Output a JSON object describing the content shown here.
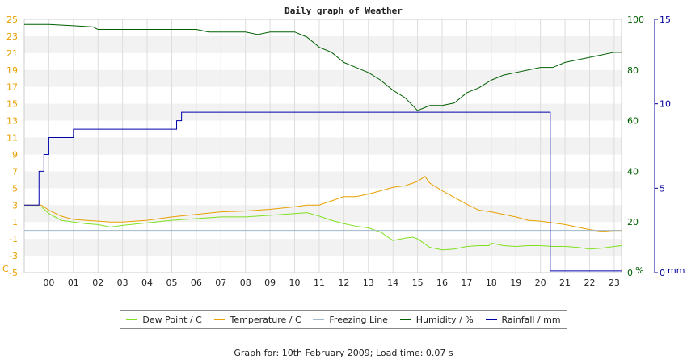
{
  "chart_data": {
    "type": "line",
    "title": "Daily graph of Weather",
    "x_ticks": [
      "00",
      "01",
      "02",
      "03",
      "04",
      "05",
      "06",
      "07",
      "08",
      "09",
      "10",
      "11",
      "12",
      "13",
      "14",
      "15",
      "16",
      "17",
      "18",
      "19",
      "20",
      "21",
      "22",
      "23"
    ],
    "xlim": [
      -1,
      23.3
    ],
    "left_axis": {
      "unit": "C",
      "min": -5,
      "max": 25,
      "ticks": [
        25,
        23,
        21,
        19,
        17,
        15,
        13,
        11,
        9,
        7,
        5,
        3,
        1,
        -1,
        -3,
        -5
      ],
      "color": "#e8a000"
    },
    "humidity_axis": {
      "unit": "%",
      "min": 0,
      "max": 100,
      "ticks": [
        100,
        80,
        60,
        40,
        20,
        0
      ],
      "color": "#006000"
    },
    "rainfall_axis": {
      "unit": "mm",
      "min": 0,
      "max": 15,
      "ticks": [
        15,
        10,
        5,
        0
      ],
      "color": "#000099"
    },
    "series": [
      {
        "name": "Dew Point / C",
        "color": "#80e020",
        "axis": "left",
        "x": [
          -1,
          -0.3,
          0,
          0.5,
          1,
          1.5,
          2,
          2.5,
          3,
          4,
          5,
          6,
          7,
          8,
          9,
          10,
          10.5,
          11,
          11.5,
          12,
          12.5,
          13,
          13.5,
          14,
          14.5,
          14.8,
          15,
          15.5,
          16,
          16.5,
          17,
          17.5,
          17.9,
          18,
          18.5,
          19,
          19.5,
          20,
          20.5,
          21,
          21.5,
          22,
          22.5,
          23,
          23.3
        ],
        "y": [
          2.8,
          2.8,
          2.0,
          1.2,
          1.0,
          0.8,
          0.7,
          0.4,
          0.6,
          0.9,
          1.2,
          1.4,
          1.6,
          1.6,
          1.8,
          2.0,
          2.1,
          1.7,
          1.2,
          0.8,
          0.5,
          0.3,
          -0.2,
          -1.2,
          -0.9,
          -0.8,
          -1.0,
          -2.0,
          -2.3,
          -2.2,
          -1.9,
          -1.8,
          -1.8,
          -1.5,
          -1.8,
          -1.9,
          -1.8,
          -1.8,
          -1.9,
          -1.9,
          -2.0,
          -2.2,
          -2.1,
          -1.9,
          -1.8
        ]
      },
      {
        "name": "Temperature / C",
        "color": "#e8a000",
        "axis": "left",
        "x": [
          -1,
          -0.3,
          0,
          0.5,
          1,
          1.5,
          2,
          2.5,
          3,
          4,
          5,
          6,
          7,
          8,
          9,
          10,
          10.5,
          11,
          11.5,
          12,
          12.5,
          13,
          13.5,
          14,
          14.5,
          15,
          15.3,
          15.5,
          16,
          16.5,
          17,
          17.5,
          18,
          18.5,
          19,
          19.5,
          20,
          20.5,
          21,
          21.5,
          22,
          22.5,
          23,
          23.3
        ],
        "y": [
          3.0,
          3.0,
          2.4,
          1.7,
          1.3,
          1.2,
          1.1,
          1.0,
          1.0,
          1.2,
          1.6,
          1.9,
          2.2,
          2.3,
          2.5,
          2.8,
          3.0,
          3.0,
          3.5,
          4.0,
          4.0,
          4.3,
          4.7,
          5.1,
          5.3,
          5.8,
          6.4,
          5.6,
          4.7,
          3.9,
          3.1,
          2.4,
          2.2,
          1.9,
          1.6,
          1.2,
          1.1,
          0.9,
          0.7,
          0.4,
          0.1,
          -0.1,
          0.0,
          0.0
        ]
      },
      {
        "name": "Freezing Line",
        "color": "#a0b8c8",
        "axis": "left",
        "x": [
          -1,
          23.3
        ],
        "y": [
          0,
          0
        ]
      },
      {
        "name": "Humidity / %",
        "color": "#006000",
        "axis": "humidity",
        "x": [
          -1,
          0,
          1,
          1.8,
          2,
          3,
          4,
          5,
          6,
          6.5,
          7,
          8,
          8.5,
          9,
          10,
          10.5,
          11,
          11.5,
          12,
          12.5,
          13,
          13.5,
          14,
          14.5,
          15,
          15.5,
          16,
          16.5,
          17,
          17.5,
          18,
          18.5,
          19,
          19.5,
          20,
          20.5,
          21,
          21.5,
          22,
          22.5,
          23,
          23.3
        ],
        "y": [
          98,
          98,
          97.5,
          97,
          96,
          96,
          96,
          96,
          96,
          95,
          95,
          95,
          94,
          95,
          95,
          93,
          89,
          87,
          83,
          81,
          79,
          76,
          72,
          69,
          64,
          66,
          66,
          67,
          71,
          73,
          76,
          78,
          79,
          80,
          81,
          81,
          83,
          84,
          85,
          86,
          87,
          87
        ]
      },
      {
        "name": "Rainfall / mm",
        "color": "#0000aa",
        "axis": "rainfall",
        "x": [
          -1,
          -0.6,
          -0.4,
          -0.2,
          0,
          0.8,
          1,
          5.2,
          5.4,
          20.2,
          20.4,
          23.3
        ],
        "y": [
          4,
          4,
          6,
          7,
          8,
          8,
          8.5,
          9,
          9.5,
          9.5,
          0.1,
          0.1
        ]
      }
    ],
    "grid": true,
    "legend": "bottom",
    "footer": "Graph for: 10th February 2009; Load time: 0.07 s"
  }
}
